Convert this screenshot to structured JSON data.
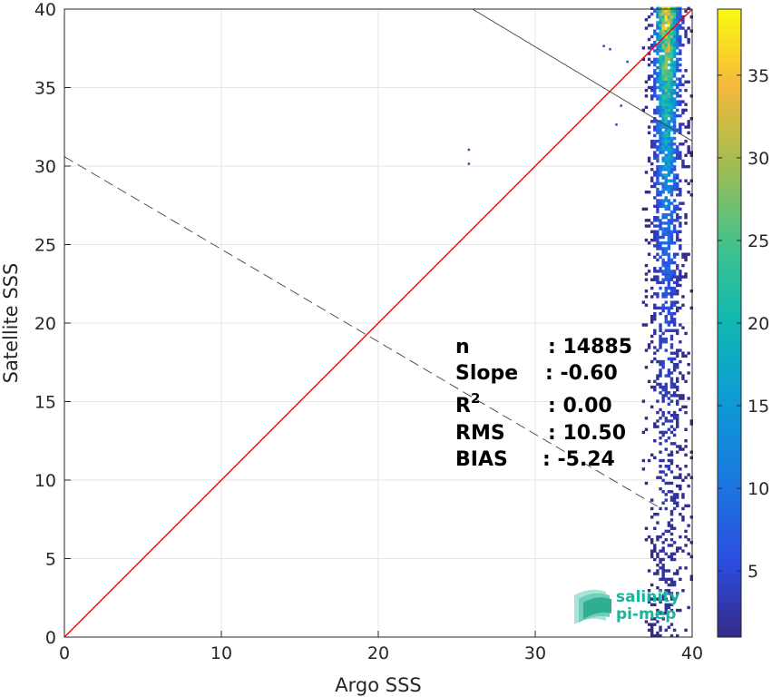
{
  "chart_data": {
    "type": "heatmap",
    "xlabel": "Argo SSS",
    "ylabel": "Satellite SSS",
    "xlim": [
      0,
      40
    ],
    "ylim": [
      0,
      40
    ],
    "x_ticks": [
      "0",
      "10",
      "20",
      "30",
      "40"
    ],
    "y_ticks": [
      "0",
      "5",
      "10",
      "15",
      "20",
      "25",
      "30",
      "35",
      "40"
    ],
    "grid": true,
    "colorbar": {
      "range": [
        1,
        39
      ],
      "ticks": [
        "5",
        "10",
        "15",
        "20",
        "25",
        "30",
        "35"
      ],
      "colormap": "parula"
    },
    "density_cluster": {
      "x_range": [
        36.8,
        40
      ],
      "y_range": [
        0,
        40
      ],
      "peak_x": 38.3,
      "peak_count": 39
    },
    "outliers": [
      {
        "x": 25.7,
        "y": 31.0
      },
      {
        "x": 25.7,
        "y": 30.1
      },
      {
        "x": 34.3,
        "y": 37.6
      },
      {
        "x": 34.7,
        "y": 37.4
      },
      {
        "x": 35.8,
        "y": 36.6
      },
      {
        "x": 35.4,
        "y": 33.8
      },
      {
        "x": 35.1,
        "y": 32.6
      }
    ],
    "lines": [
      {
        "name": "identity",
        "style": "solid",
        "color": "#ff0000",
        "x": [
          0,
          40
        ],
        "y": [
          0,
          40
        ]
      },
      {
        "name": "regression",
        "style": "dashed",
        "color": "#404040",
        "x": [
          0,
          38
        ],
        "y": [
          30.6,
          8.2
        ]
      },
      {
        "name": "reference",
        "style": "solid",
        "color": "#404040",
        "x": [
          26,
          40
        ],
        "y": [
          40,
          31.6
        ]
      }
    ],
    "stats": {
      "n_label": "n",
      "n_value": ": 14885",
      "slope_label": "Slope",
      "slope_value": ": -0.60",
      "r2_label": "R",
      "r2_sup": "2",
      "r2_value": ": 0.00",
      "rms_label": "RMS",
      "rms_value": ": 10.50",
      "bias_label": "BIAS",
      "bias_value": ": -5.24"
    },
    "logo": {
      "line1": "salinity",
      "line2": "pi-mep"
    }
  }
}
